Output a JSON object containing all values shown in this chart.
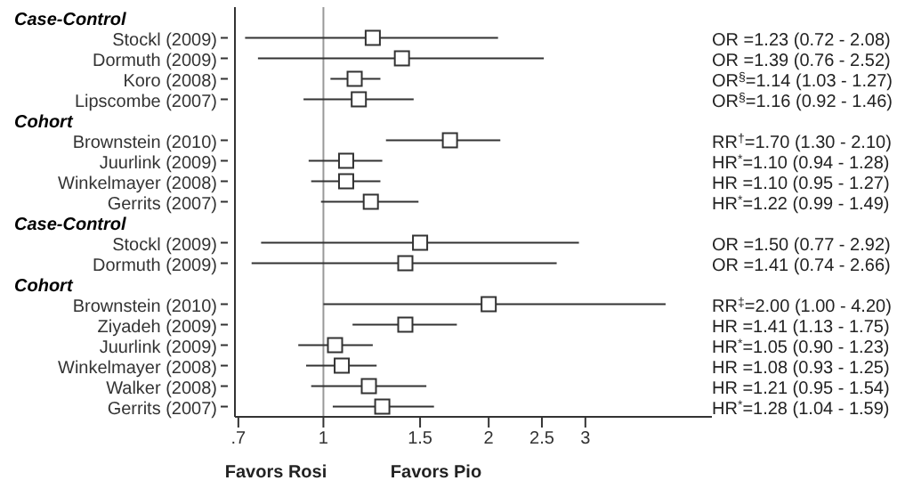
{
  "chart_data": {
    "type": "scatter",
    "orientation": "horizontal",
    "marker": "square",
    "categories": [
      null,
      "Stockl (2009)",
      "Dormuth (2009)",
      "Koro (2008)",
      "Lipscombe (2007)",
      null,
      "Brownstein (2010)",
      "Juurlink (2009)",
      "Winkelmayer (2008)",
      "Gerrits (2007)",
      null,
      "Stockl (2009)",
      "Dormuth (2009)",
      null,
      "Brownstein (2010)",
      "Ziyadeh (2009)",
      "Juurlink (2009)",
      "Winkelmayer (2008)",
      "Walker (2008)",
      "Gerrits (2007)"
    ],
    "series": [
      {
        "color": "#333333",
        "values": [
          null,
          1.23,
          1.39,
          1.14,
          1.16,
          null,
          1.7,
          1.1,
          1.1,
          1.22,
          null,
          1.5,
          1.41,
          null,
          2.0,
          1.41,
          1.05,
          1.08,
          1.21,
          1.28
        ],
        "errors": [
          null,
          [
            0.72,
            2.08
          ],
          [
            0.76,
            2.52
          ],
          [
            1.03,
            1.27
          ],
          [
            0.92,
            1.46
          ],
          null,
          [
            1.3,
            2.1
          ],
          [
            0.94,
            1.28
          ],
          [
            0.95,
            1.27
          ],
          [
            0.99,
            1.49
          ],
          null,
          [
            0.77,
            2.92
          ],
          [
            0.74,
            2.66
          ],
          null,
          [
            1.0,
            4.2
          ],
          [
            1.13,
            1.75
          ],
          [
            0.9,
            1.23
          ],
          [
            0.93,
            1.25
          ],
          [
            0.95,
            1.54
          ],
          [
            1.04,
            1.59
          ]
        ],
        "value_labels": [
          null,
          "OR =1.23 (0.72 - 2.08)",
          "OR =1.39 (0.76 - 2.52)",
          "OR$^{§}$=1.14 (1.03 - 1.27)",
          "OR$^{§}$=1.16 (0.92 - 1.46)",
          null,
          "RR$^{†}$=1.70 (1.30 - 2.10)",
          "HR$^{*}$=1.10 (0.94 - 1.28)",
          "HR =1.10 (0.95 - 1.27)",
          "HR$^{*}$=1.22 (0.99 - 1.49)",
          null,
          "OR =1.50 (0.77 - 2.92)",
          "OR =1.41 (0.74 - 2.66)",
          null,
          "RR$^{‡}$=2.00 (1.00 - 4.20)",
          "HR =1.41 (1.13 - 1.75)",
          "HR$^{*}$=1.05 (0.90 - 1.23)",
          "HR =1.08 (0.93 - 1.25)",
          "HR =1.21 (0.95 - 1.54)",
          "HR$^{*}$=1.28 (1.04 - 1.59)"
        ]
      }
    ],
    "log": "x",
    "xlim": [
      0.69,
      5.1
    ],
    "xticks": [
      {
        "value": 0.7,
        "label": ".7"
      },
      1,
      1.5,
      2,
      2.5,
      3
    ],
    "ref_lines": [
      {
        "axis": "x",
        "value": 1,
        "color": "#999999"
      }
    ],
    "annotations": [
      "Case-Control",
      "Cohort",
      "Case-Control",
      "Cohort",
      "Favors Rosi",
      "Favors Pio"
    ]
  }
}
